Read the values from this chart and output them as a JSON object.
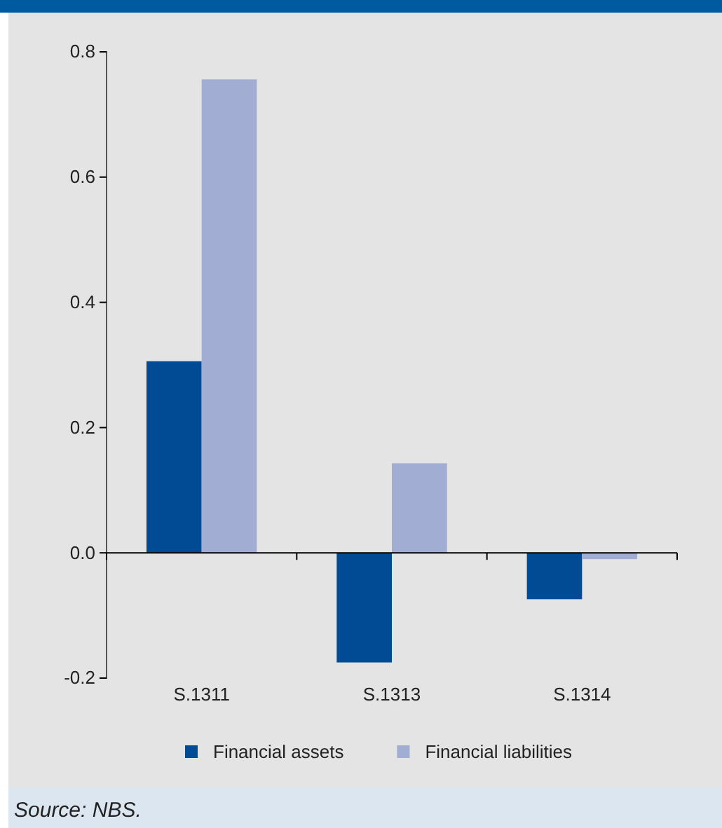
{
  "chart_data": {
    "type": "bar",
    "categories": [
      "S.1311",
      "S.1313",
      "S.1314"
    ],
    "series": [
      {
        "name": "Financial assets",
        "color": "#004b93",
        "values": [
          0.306,
          -0.175,
          -0.074
        ]
      },
      {
        "name": "Financial liabilities",
        "color": "#a1add3",
        "values": [
          0.756,
          0.143,
          -0.01
        ]
      }
    ],
    "ylim": [
      -0.2,
      0.8
    ],
    "yticks": [
      {
        "value": -0.2,
        "label": "-0.2"
      },
      {
        "value": 0,
        "label": "0.0"
      },
      {
        "value": 0.2,
        "label": "0.2"
      },
      {
        "value": 0.4,
        "label": "0.4"
      },
      {
        "value": 0.6,
        "label": "0.6"
      },
      {
        "value": 0.8,
        "label": "0.8"
      }
    ],
    "legend": "bottom",
    "annotations": [
      "Source: NBS."
    ]
  }
}
